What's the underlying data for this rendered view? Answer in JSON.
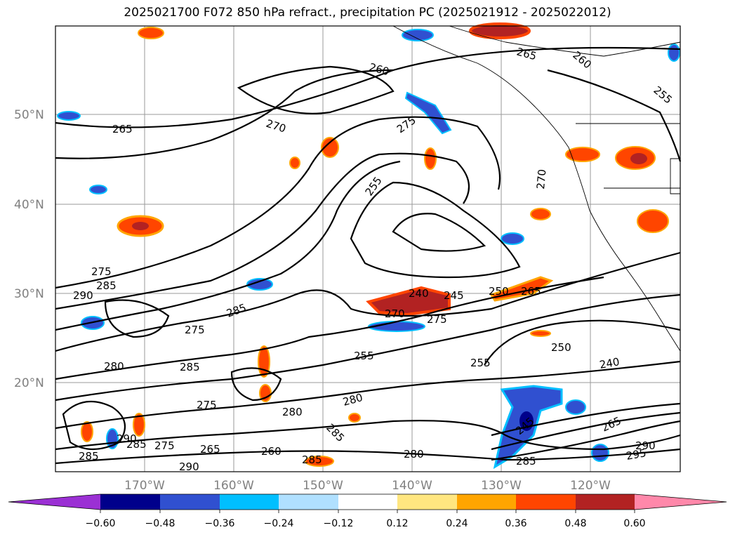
{
  "title": "2025021700 F072 850 hPa refract., precipitation PC (2025021912 - 2025022012)",
  "latitude_labels": [
    "50°N",
    "40°N",
    "30°N",
    "20°N"
  ],
  "longitude_labels": [
    "170°W",
    "160°W",
    "150°W",
    "140°W",
    "130°W",
    "120°W"
  ],
  "contour_labels": [
    "265",
    "270",
    "275",
    "260",
    "255",
    "250",
    "245",
    "240",
    "280",
    "285",
    "290",
    "295"
  ],
  "colorbar": {
    "ticks": [
      "−0.60",
      "−0.48",
      "−0.36",
      "−0.24",
      "−0.12",
      "0.12",
      "0.24",
      "0.36",
      "0.48",
      "0.60"
    ],
    "colors": [
      "#9b30d4",
      "#00008b",
      "#3050d0",
      "#00bfff",
      "#b0e0ff",
      "#ffffff",
      "#ffe680",
      "#ffa500",
      "#ff4500",
      "#b22222",
      "#ff88aa"
    ]
  }
}
